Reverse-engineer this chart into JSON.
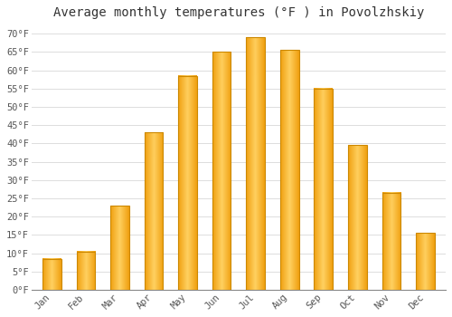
{
  "title": "Average monthly temperatures (°F ) in Povolzhskiy",
  "months": [
    "Jan",
    "Feb",
    "Mar",
    "Apr",
    "May",
    "Jun",
    "Jul",
    "Aug",
    "Sep",
    "Oct",
    "Nov",
    "Dec"
  ],
  "values": [
    8.5,
    10.5,
    23.0,
    43.0,
    58.5,
    65.0,
    69.0,
    65.5,
    55.0,
    39.5,
    26.5,
    15.5
  ],
  "bar_color_center": "#FFD060",
  "bar_color_edge": "#F0A010",
  "bar_edge_color": "#CC8800",
  "ylim": [
    0,
    72
  ],
  "yticks": [
    0,
    5,
    10,
    15,
    20,
    25,
    30,
    35,
    40,
    45,
    50,
    55,
    60,
    65,
    70
  ],
  "background_color": "#FFFFFF",
  "grid_color": "#DDDDDD",
  "title_fontsize": 10,
  "tick_fontsize": 7.5,
  "bar_width": 0.55
}
